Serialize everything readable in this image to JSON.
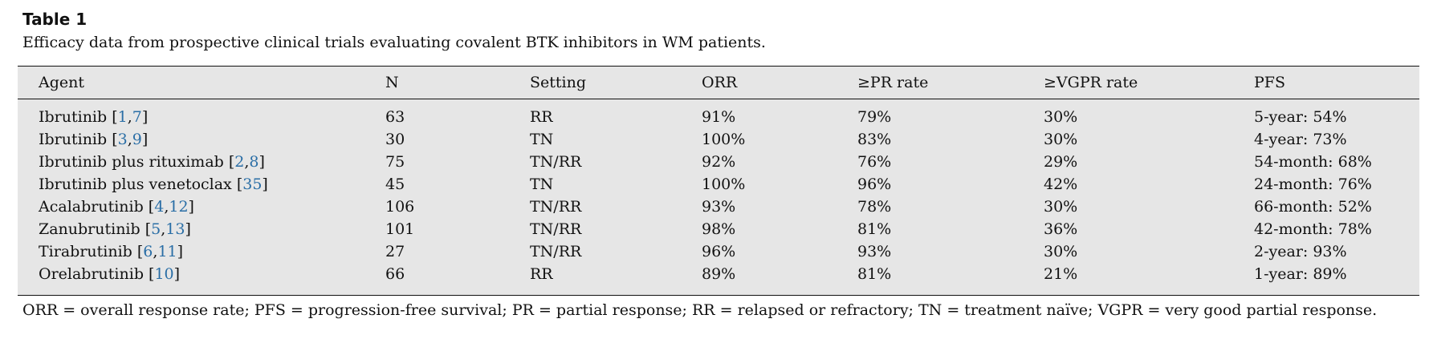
{
  "table_label": "Table 1",
  "caption": "Efficacy data from prospective clinical trials evaluating covalent BTK inhibitors in WM patients.",
  "headers": [
    "Agent",
    "N",
    "Setting",
    "ORR",
    "≥PR rate",
    "≥VGPR rate",
    "PFS"
  ],
  "rows": [
    {
      "agent": "Ibrutinib",
      "refs": [
        "1",
        "7"
      ],
      "n": "63",
      "setting": "RR",
      "orr": "91%",
      "pr": "79%",
      "vgpr": "30%",
      "pfs": "5-year: 54%"
    },
    {
      "agent": "Ibrutinib",
      "refs": [
        "3",
        "9"
      ],
      "n": "30",
      "setting": "TN",
      "orr": "100%",
      "pr": "83%",
      "vgpr": "30%",
      "pfs": "4-year: 73%"
    },
    {
      "agent": "Ibrutinib plus rituximab",
      "refs": [
        "2",
        "8"
      ],
      "n": "75",
      "setting": "TN/RR",
      "orr": "92%",
      "pr": "76%",
      "vgpr": "29%",
      "pfs": "54-month: 68%"
    },
    {
      "agent": "Ibrutinib plus venetoclax",
      "refs": [
        "35"
      ],
      "n": "45",
      "setting": "TN",
      "orr": "100%",
      "pr": "96%",
      "vgpr": "42%",
      "pfs": "24-month: 76%"
    },
    {
      "agent": "Acalabrutinib",
      "refs": [
        "4",
        "12"
      ],
      "n": "106",
      "setting": "TN/RR",
      "orr": "93%",
      "pr": "78%",
      "vgpr": "30%",
      "pfs": "66-month: 52%"
    },
    {
      "agent": "Zanubrutinib",
      "refs": [
        "5",
        "13"
      ],
      "n": "101",
      "setting": "TN/RR",
      "orr": "98%",
      "pr": "81%",
      "vgpr": "36%",
      "pfs": "42-month: 78%"
    },
    {
      "agent": "Tirabrutinib",
      "refs": [
        "6",
        "11"
      ],
      "n": "27",
      "setting": "TN/RR",
      "orr": "96%",
      "pr": "93%",
      "vgpr": "30%",
      "pfs": "2-year: 93%"
    },
    {
      "agent": "Orelabrutinib",
      "refs": [
        "10"
      ],
      "n": "66",
      "setting": "RR",
      "orr": "89%",
      "pr": "81%",
      "vgpr": "21%",
      "pfs": "1-year: 89%"
    }
  ],
  "footnote": "ORR = overall response rate; PFS = progression-free survival; PR = partial response; RR = relapsed or refractory; TN = treatment naïve; VGPR = very good partial response.",
  "colors": {
    "table_background": "#e6e6e6",
    "reference_link": "#2a6ea6",
    "text": "#111111"
  }
}
